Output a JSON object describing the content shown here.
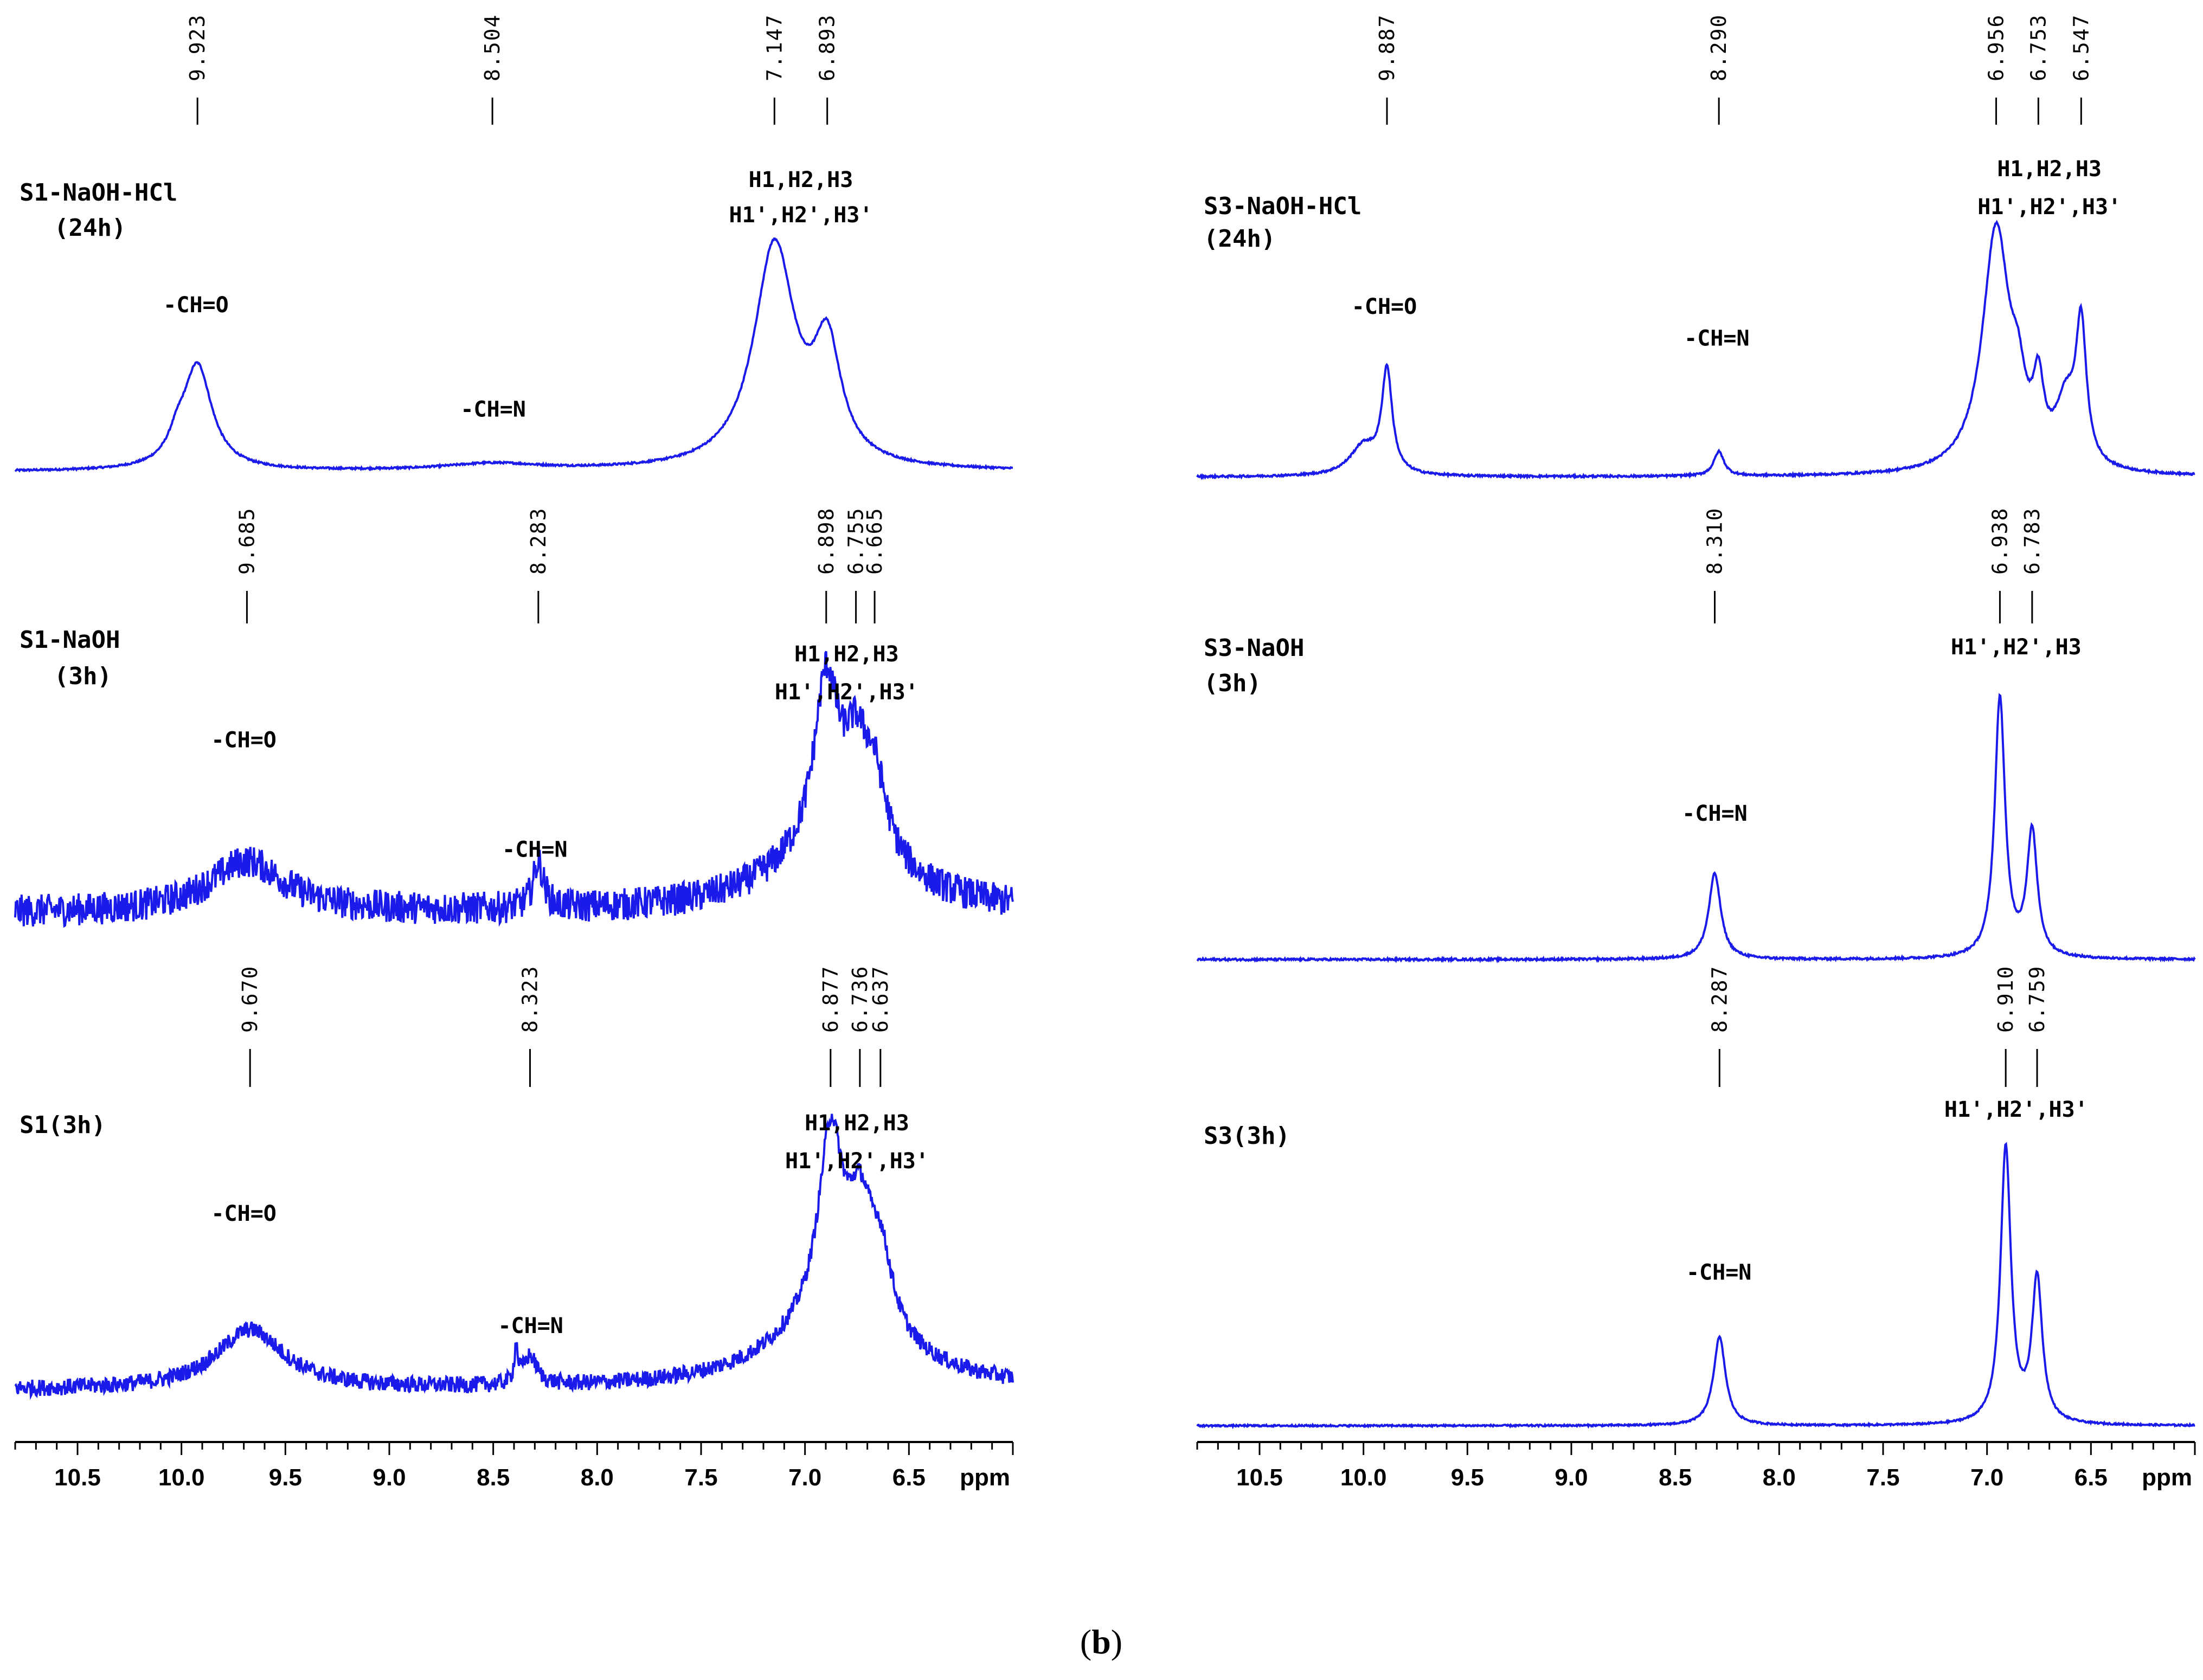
{
  "figure": {
    "caption_open": "(",
    "caption_letter": "b",
    "caption_close": ")",
    "trace_color": "#1a1aeb",
    "axis_unit": "ppm"
  },
  "chart_data": [
    {
      "type": "line",
      "xlabel": "ppm",
      "xlim": [
        10.8,
        6.0
      ],
      "x_ticks": [
        "10.5",
        "10.0",
        "9.5",
        "9.0",
        "8.5",
        "8.0",
        "7.5",
        "7.0",
        "6.5"
      ],
      "spectra": [
        {
          "name": "S1-NaOH-HCl (24h)",
          "label_lines": [
            "S1-NaOH-HCl",
            "(24h)"
          ],
          "peak_labels": [
            "9.923",
            "8.504",
            "7.147",
            "6.893"
          ],
          "assignments": [
            {
              "text": "H1,H2,H3",
              "ppm": 7.02
            },
            {
              "text": "H1',H2',H3'",
              "ppm": 7.02
            },
            {
              "text": "-CH=O",
              "ppm": 9.93
            },
            {
              "text": "-CH=N",
              "ppm": 8.5
            }
          ],
          "noise": 0.004,
          "baseline": 0,
          "peaks": [
            {
              "ppm": 9.923,
              "h": 0.47,
              "w": 0.085
            },
            {
              "ppm": 10.02,
              "h": 0.08,
              "w": 0.05
            },
            {
              "ppm": 8.504,
              "h": 0.03,
              "w": 0.28
            },
            {
              "ppm": 7.147,
              "h": 1.0,
              "w": 0.12
            },
            {
              "ppm": 6.893,
              "h": 0.5,
              "w": 0.08
            }
          ]
        },
        {
          "name": "S1-NaOH (3h)",
          "label_lines": [
            "S1-NaOH",
            "(3h)"
          ],
          "peak_labels": [
            "9.685",
            "8.283",
            "6.898",
            "6.755",
            "6.665"
          ],
          "assignments": [
            {
              "text": "H1,H2,H3",
              "ppm": 6.8
            },
            {
              "text": "H1',H2',H3'",
              "ppm": 6.8
            },
            {
              "text": "-CH=O",
              "ppm": 9.7
            },
            {
              "text": "-CH=N",
              "ppm": 8.3
            }
          ],
          "noise": 0.07,
          "baseline": 0,
          "peaks": [
            {
              "ppm": 9.685,
              "h": 0.22,
              "w": 0.22
            },
            {
              "ppm": 8.283,
              "h": 0.2,
              "w": 0.03
            },
            {
              "ppm": 6.898,
              "h": 0.7,
              "w": 0.07
            },
            {
              "ppm": 6.755,
              "h": 0.35,
              "w": 0.07
            },
            {
              "ppm": 6.665,
              "h": 0.3,
              "w": 0.07
            },
            {
              "ppm": 6.85,
              "h": 0.28,
              "w": 0.35
            }
          ]
        },
        {
          "name": "S1 (3h)",
          "label_lines": [
            "S1(3h)"
          ],
          "peak_labels": [
            "9.670",
            "8.323",
            "6.877",
            "6.736",
            "6.637"
          ],
          "assignments": [
            {
              "text": "H1,H2,H3",
              "ppm": 6.75
            },
            {
              "text": "H1',H2',H3'",
              "ppm": 6.75
            },
            {
              "text": "-CH=O",
              "ppm": 9.7
            },
            {
              "text": "-CH=N",
              "ppm": 8.32
            }
          ],
          "noise": 0.035,
          "baseline": 0,
          "peaks": [
            {
              "ppm": 9.67,
              "h": 0.25,
              "w": 0.2
            },
            {
              "ppm": 8.39,
              "h": 0.15,
              "w": 0.01
            },
            {
              "ppm": 8.323,
              "h": 0.12,
              "w": 0.04
            },
            {
              "ppm": 6.877,
              "h": 0.75,
              "w": 0.07
            },
            {
              "ppm": 6.736,
              "h": 0.4,
              "w": 0.07
            },
            {
              "ppm": 6.637,
              "h": 0.3,
              "w": 0.07
            },
            {
              "ppm": 6.85,
              "h": 0.3,
              "w": 0.35
            }
          ]
        },
        {
          "name": "S3-NaOH-HCl (24h)",
          "label_lines": [
            "S3-NaOH-HCl",
            "(24h)"
          ],
          "peak_labels": [
            "9.887",
            "8.290",
            "6.956",
            "6.753",
            "6.547"
          ],
          "assignments": [
            {
              "text": "H1,H2,H3",
              "ppm": 6.7
            },
            {
              "text": "H1',H2',H3'",
              "ppm": 6.7
            },
            {
              "text": "-CH=O",
              "ppm": 9.9
            },
            {
              "text": "-CH=N",
              "ppm": 8.3
            }
          ],
          "noise": 0.004,
          "baseline": 0,
          "peaks": [
            {
              "ppm": 9.887,
              "h": 0.42,
              "w": 0.03
            },
            {
              "ppm": 10.0,
              "h": 0.12,
              "w": 0.08
            },
            {
              "ppm": 8.29,
              "h": 0.1,
              "w": 0.03
            },
            {
              "ppm": 6.956,
              "h": 1.0,
              "w": 0.08
            },
            {
              "ppm": 6.85,
              "h": 0.2,
              "w": 0.04
            },
            {
              "ppm": 6.753,
              "h": 0.28,
              "w": 0.03
            },
            {
              "ppm": 6.62,
              "h": 0.25,
              "w": 0.06
            },
            {
              "ppm": 6.547,
              "h": 0.55,
              "w": 0.03
            }
          ]
        },
        {
          "name": "S3-NaOH (3h)",
          "label_lines": [
            "S3-NaOH",
            "(3h)"
          ],
          "peak_labels": [
            "8.310",
            "6.938",
            "6.783"
          ],
          "assignments": [
            {
              "text": "H1',H2',H3",
              "ppm": 6.86
            },
            {
              "text": "-CH=N",
              "ppm": 8.31
            }
          ],
          "noise": 0.004,
          "baseline": 0,
          "peaks": [
            {
              "ppm": 8.31,
              "h": 0.33,
              "w": 0.035
            },
            {
              "ppm": 6.938,
              "h": 1.0,
              "w": 0.03
            },
            {
              "ppm": 6.783,
              "h": 0.48,
              "w": 0.03
            }
          ]
        },
        {
          "name": "S3 (3h)",
          "label_lines": [
            "S3(3h)"
          ],
          "peak_labels": [
            "8.287",
            "6.910",
            "6.759"
          ],
          "assignments": [
            {
              "text": "H1',H2',H3'",
              "ppm": 6.86
            },
            {
              "text": "-CH=N",
              "ppm": 8.29
            }
          ],
          "noise": 0.003,
          "baseline": 0,
          "peaks": [
            {
              "ppm": 8.287,
              "h": 0.32,
              "w": 0.035
            },
            {
              "ppm": 6.91,
              "h": 1.0,
              "w": 0.03
            },
            {
              "ppm": 6.759,
              "h": 0.52,
              "w": 0.03
            }
          ]
        }
      ]
    }
  ]
}
